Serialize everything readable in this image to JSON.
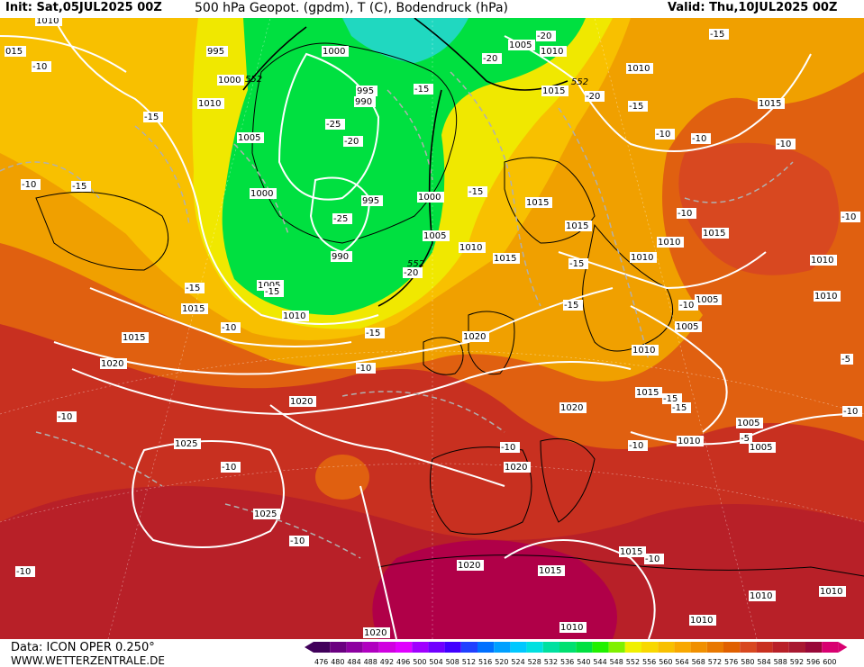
{
  "header": {
    "init": "Init: Sat,05JUL2025 00Z",
    "title": "500 hPa Geopot. (gpdm), T (C), Bodendruck (hPa)",
    "valid": "Valid: Thu,10JUL2025 00Z"
  },
  "footer": {
    "source": "Data: ICON OPER 0.250°",
    "site": "WWW.WETTERZENTRALE.DE"
  },
  "colors": {
    "low_green": "#00e040",
    "low_cyan": "#20d8c0",
    "yellow": "#f0e800",
    "orange": "#f0a000",
    "dark_orange": "#e06010",
    "red": "#c82818",
    "dark_red": "#a01830",
    "crimson": "#b00048"
  },
  "scale": {
    "values": [
      "476",
      "480",
      "484",
      "488",
      "492",
      "496",
      "500",
      "504",
      "508",
      "512",
      "516",
      "520",
      "524",
      "528",
      "532",
      "536",
      "540",
      "544",
      "548",
      "552",
      "556",
      "560",
      "564",
      "568",
      "572",
      "576",
      "580",
      "584",
      "588",
      "592",
      "596",
      "600"
    ],
    "colors": [
      "#40005a",
      "#6a0080",
      "#8c00a0",
      "#b000c0",
      "#d000e0",
      "#e000ff",
      "#a000ff",
      "#7000ff",
      "#4000ff",
      "#2040ff",
      "#0070ff",
      "#00a0ff",
      "#00c8ff",
      "#00e0e0",
      "#00e0a0",
      "#00e070",
      "#00e040",
      "#20f000",
      "#80f000",
      "#f0f000",
      "#f8d800",
      "#f8c000",
      "#f8a800",
      "#f09000",
      "#e87800",
      "#e06000",
      "#d84820",
      "#c83020",
      "#b82028",
      "#a81830",
      "#980838",
      "#d80070"
    ]
  },
  "isobars": [
    "1010",
    "015",
    "1010",
    "995",
    "1000",
    "1010",
    "1005",
    "1000",
    "995",
    "990",
    "1000",
    "995",
    "1000",
    "1005",
    "990",
    "1010",
    "1005",
    "1010",
    "1015",
    "1010",
    "1005",
    "1015",
    "1010",
    "1015",
    "1015",
    "1015",
    "1015",
    "1005",
    "1010",
    "1015",
    "1010",
    "1010",
    "1005",
    "1020",
    "1015",
    "1020",
    "1020",
    "1010",
    "1005",
    "1015",
    "1020",
    "1025",
    "1020",
    "1010",
    "1005",
    "1025",
    "1015",
    "1020",
    "1015",
    "1010",
    "1010",
    "1010",
    "1020",
    "1010"
  ],
  "isotherms": [
    "-10",
    "-15",
    "-15",
    "-10",
    "-15",
    "-20",
    "-15",
    "-20",
    "-20",
    "-25",
    "-20",
    "-15",
    "-15",
    "-10",
    "-10",
    "-10",
    "-25",
    "-20",
    "-15",
    "-15",
    "-15",
    "-10",
    "-10",
    "-15",
    "-10",
    "-15",
    "-15",
    "-10",
    "-10",
    "-10",
    "-10",
    "-10",
    "-10",
    "-10",
    "-5",
    "-5",
    "-10",
    "-10",
    "-15",
    "-10"
  ],
  "height_552_labels": [
    "552",
    "552",
    "552"
  ]
}
